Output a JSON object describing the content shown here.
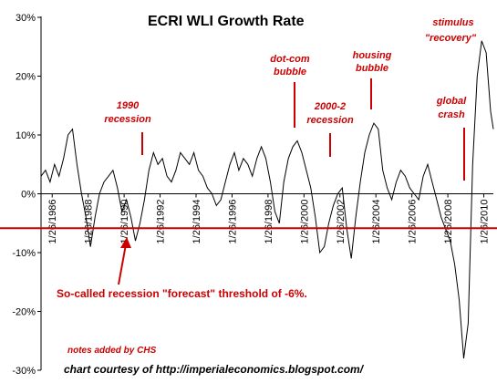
{
  "chart_data": {
    "type": "line",
    "title": "ECRI WLI Growth Rate",
    "ylim": [
      -30,
      30
    ],
    "y_ticks": [
      30,
      20,
      10,
      0,
      -10,
      -20,
      -30
    ],
    "y_tick_labels": [
      "30%",
      "20%",
      "10%",
      "0%",
      "-10%",
      "-20%",
      "-30%"
    ],
    "x_ticks": [
      1986.07,
      1988.07,
      1990.07,
      1992.07,
      1994.07,
      1996.07,
      1998.07,
      2000.07,
      2002.07,
      2004.07,
      2006.07,
      2008.07,
      2010.07
    ],
    "x_tick_labels": [
      "1/26/1986",
      "1/26/1988",
      "1/26/1990",
      "1/26/1992",
      "1/26/1994",
      "1/26/1996",
      "1/26/1998",
      "1/26/2000",
      "1/26/2002",
      "1/26/2004",
      "1/26/2006",
      "1/26/2008",
      "1/26/2010"
    ],
    "xlim": [
      1985.45,
      2010.6
    ],
    "series": [
      {
        "x": [
          1985.45,
          1985.7,
          1985.95,
          1986.2,
          1986.45,
          1986.7,
          1986.95,
          1987.2,
          1987.45,
          1987.7,
          1987.95,
          1988.2,
          1988.45,
          1988.7,
          1988.95,
          1989.2,
          1989.45,
          1989.7,
          1989.95,
          1990.2,
          1990.45,
          1990.7,
          1990.95,
          1991.2,
          1991.45,
          1991.7,
          1991.95,
          1992.2,
          1992.45,
          1992.7,
          1992.95,
          1993.2,
          1993.45,
          1993.7,
          1993.95,
          1994.2,
          1994.45,
          1994.7,
          1994.95,
          1995.2,
          1995.45,
          1995.7,
          1995.95,
          1996.2,
          1996.45,
          1996.7,
          1996.95,
          1997.2,
          1997.45,
          1997.7,
          1997.95,
          1998.2,
          1998.45,
          1998.7,
          1998.95,
          1999.2,
          1999.45,
          1999.7,
          1999.95,
          2000.2,
          2000.45,
          2000.7,
          2000.95,
          2001.2,
          2001.45,
          2001.7,
          2001.95,
          2002.2,
          2002.45,
          2002.7,
          2002.95,
          2003.2,
          2003.45,
          2003.7,
          2003.95,
          2004.2,
          2004.45,
          2004.7,
          2004.95,
          2005.2,
          2005.45,
          2005.7,
          2005.95,
          2006.2,
          2006.45,
          2006.7,
          2006.95,
          2007.2,
          2007.45,
          2007.7,
          2007.95,
          2008.2,
          2008.45,
          2008.7,
          2008.95,
          2009.2,
          2009.45,
          2009.7,
          2009.95,
          2010.2,
          2010.45,
          2010.6
        ],
        "y": [
          3,
          4,
          2,
          5,
          3,
          6,
          10,
          11,
          5,
          0,
          -4,
          -9,
          -4,
          0,
          2,
          3,
          4,
          1,
          -3,
          -1,
          -4,
          -8,
          -5,
          -1,
          4,
          7,
          5,
          6,
          3,
          2,
          4,
          7,
          6,
          5,
          7,
          4,
          3,
          1,
          0,
          -2,
          -1,
          2,
          5,
          7,
          4,
          6,
          5,
          3,
          6,
          8,
          6,
          2,
          -3,
          -5,
          2,
          6,
          8,
          9,
          7,
          4,
          1,
          -4,
          -10,
          -9,
          -5,
          -2,
          0,
          1,
          -6,
          -11,
          -4,
          2,
          7,
          10,
          12,
          11,
          4,
          1,
          -1,
          2,
          4,
          3,
          1,
          0,
          -1,
          3,
          5,
          2,
          -1,
          -4,
          -6,
          -8,
          -12,
          -18,
          -28,
          -22,
          5,
          20,
          26,
          24,
          14,
          11
        ]
      }
    ],
    "annotations": {
      "recession_1990": [
        "1990",
        "recession"
      ],
      "dotcom": [
        "dot-com",
        "bubble"
      ],
      "recession_2000": [
        "2000-2",
        "recession"
      ],
      "housing": [
        "housing",
        "bubble"
      ],
      "global": [
        "global",
        "crash"
      ],
      "stimulus": [
        "stimulus",
        "\"recovery\""
      ],
      "threshold_text": "So-called recession \"forecast\" threshold of -6%.",
      "notes_added": "notes added by CHS",
      "credit": "chart courtesy of  http://imperialeconomics.blogspot.com/"
    },
    "threshold_value": -6,
    "colors": {
      "series": "#000000",
      "annotation": "#cc0000",
      "threshold": "#cc0000"
    }
  }
}
